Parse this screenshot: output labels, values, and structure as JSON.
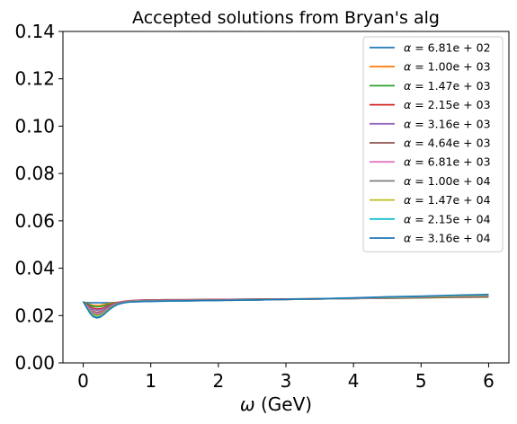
{
  "chart_data": {
    "type": "line",
    "title": "Accepted solutions from Bryan's alg",
    "xlabel_symbol": "ω",
    "xlabel_unit": "(GeV)",
    "ylabel": "",
    "xlim": [
      -0.3,
      6.3
    ],
    "ylim": [
      0,
      0.14
    ],
    "xticks": [
      "0",
      "1",
      "2",
      "3",
      "4",
      "5",
      "6"
    ],
    "yticks": [
      "0.00",
      "0.02",
      "0.04",
      "0.06",
      "0.08",
      "0.10",
      "0.12",
      "0.14"
    ],
    "grid": false,
    "legend_position": "top-right",
    "x": [
      0,
      0.05,
      0.1,
      0.15,
      0.2,
      0.25,
      0.3,
      0.35,
      0.4,
      0.45,
      0.5,
      0.6,
      0.7,
      0.8,
      0.9,
      1.0,
      1.25,
      1.5,
      2.0,
      2.5,
      3.0,
      3.5,
      4.0,
      4.5,
      5.0,
      5.5,
      6.0
    ],
    "series": [
      {
        "name": "α = 6.81e+02",
        "alpha_mantissa": "6.81",
        "alpha_exp": "02",
        "color": "#1f77b4",
        "values": [
          0.0255,
          0.0255,
          0.0254,
          0.0254,
          0.0254,
          0.0254,
          0.0254,
          0.0254,
          0.0254,
          0.0255,
          0.0255,
          0.0256,
          0.0257,
          0.0258,
          0.0259,
          0.026,
          0.0262,
          0.0263,
          0.0265,
          0.0266,
          0.0268,
          0.027,
          0.0272,
          0.0274,
          0.0276,
          0.0278,
          0.028
        ]
      },
      {
        "name": "α = 1.00e+03",
        "alpha_mantissa": "1.00",
        "alpha_exp": "03",
        "color": "#ff7f0e",
        "values": [
          0.0256,
          0.0252,
          0.0247,
          0.0243,
          0.0242,
          0.0243,
          0.0246,
          0.0249,
          0.0252,
          0.0254,
          0.0256,
          0.0259,
          0.0261,
          0.0262,
          0.0263,
          0.0264,
          0.0265,
          0.0266,
          0.0267,
          0.0268,
          0.0269,
          0.027,
          0.0272,
          0.0273,
          0.0275,
          0.0277,
          0.0278
        ]
      },
      {
        "name": "α = 1.47e+03",
        "alpha_mantissa": "1.47",
        "alpha_exp": "03",
        "color": "#2ca02c",
        "values": [
          0.0256,
          0.0251,
          0.0244,
          0.0239,
          0.0237,
          0.0238,
          0.0241,
          0.0245,
          0.0249,
          0.0252,
          0.0255,
          0.0259,
          0.0262,
          0.0264,
          0.0265,
          0.0266,
          0.0267,
          0.0267,
          0.0268,
          0.0269,
          0.027,
          0.0271,
          0.0272,
          0.0273,
          0.0275,
          0.0277,
          0.0278
        ]
      },
      {
        "name": "α = 2.15e+03",
        "alpha_mantissa": "2.15",
        "alpha_exp": "03",
        "color": "#d62728",
        "values": [
          0.0257,
          0.0248,
          0.0238,
          0.0231,
          0.0228,
          0.0229,
          0.0233,
          0.0239,
          0.0245,
          0.025,
          0.0254,
          0.026,
          0.0263,
          0.0265,
          0.0266,
          0.0266,
          0.0267,
          0.0267,
          0.0268,
          0.0269,
          0.027,
          0.0271,
          0.0272,
          0.0274,
          0.0276,
          0.0278,
          0.028
        ]
      },
      {
        "name": "α = 3.16e+03",
        "alpha_mantissa": "3.16",
        "alpha_exp": "03",
        "color": "#9467bd",
        "values": [
          0.0257,
          0.0246,
          0.0234,
          0.0226,
          0.0223,
          0.0224,
          0.0229,
          0.0235,
          0.0242,
          0.0248,
          0.0253,
          0.0259,
          0.0262,
          0.0264,
          0.0265,
          0.0265,
          0.0266,
          0.0266,
          0.0267,
          0.0268,
          0.0269,
          0.0271,
          0.0273,
          0.0275,
          0.0277,
          0.0279,
          0.0281
        ]
      },
      {
        "name": "α = 4.64e+03",
        "alpha_mantissa": "4.64",
        "alpha_exp": "03",
        "color": "#8c564b",
        "values": [
          0.0258,
          0.0243,
          0.0228,
          0.0218,
          0.0214,
          0.0216,
          0.0222,
          0.023,
          0.0238,
          0.0245,
          0.0251,
          0.0258,
          0.0261,
          0.0263,
          0.0263,
          0.0264,
          0.0264,
          0.0265,
          0.0266,
          0.0267,
          0.0268,
          0.027,
          0.0272,
          0.0274,
          0.0277,
          0.0279,
          0.0282
        ]
      },
      {
        "name": "α = 6.81e+03",
        "alpha_mantissa": "6.81",
        "alpha_exp": "03",
        "color": "#e377c2",
        "values": [
          0.0258,
          0.0242,
          0.0225,
          0.0214,
          0.0209,
          0.0211,
          0.0218,
          0.0227,
          0.0236,
          0.0244,
          0.025,
          0.0257,
          0.0261,
          0.0262,
          0.0262,
          0.0263,
          0.0263,
          0.0264,
          0.0265,
          0.0266,
          0.0268,
          0.027,
          0.0272,
          0.0275,
          0.0278,
          0.0281,
          0.0284
        ]
      },
      {
        "name": "α = 1.00e+04",
        "alpha_mantissa": "1.00",
        "alpha_exp": "04",
        "color": "#7f7f7f",
        "values": [
          0.0259,
          0.024,
          0.0221,
          0.0209,
          0.0204,
          0.0206,
          0.0214,
          0.0224,
          0.0234,
          0.0242,
          0.0249,
          0.0256,
          0.026,
          0.0261,
          0.0261,
          0.0262,
          0.0262,
          0.0263,
          0.0264,
          0.0266,
          0.0268,
          0.027,
          0.0273,
          0.0276,
          0.0279,
          0.0282,
          0.0285
        ]
      },
      {
        "name": "α = 1.47e+04",
        "alpha_mantissa": "1.47",
        "alpha_exp": "04",
        "color": "#bcbd22",
        "values": [
          0.0259,
          0.0238,
          0.0217,
          0.0203,
          0.0198,
          0.02,
          0.0209,
          0.022,
          0.0231,
          0.024,
          0.0247,
          0.0255,
          0.0259,
          0.026,
          0.026,
          0.0261,
          0.0261,
          0.0262,
          0.0264,
          0.0266,
          0.0268,
          0.0271,
          0.0274,
          0.0277,
          0.028,
          0.0283,
          0.0286
        ]
      },
      {
        "name": "α = 2.15e+04",
        "alpha_mantissa": "2.15",
        "alpha_exp": "04",
        "color": "#17becf",
        "values": [
          0.026,
          0.0236,
          0.0213,
          0.0198,
          0.0193,
          0.0195,
          0.0205,
          0.0217,
          0.0229,
          0.0238,
          0.0246,
          0.0254,
          0.0258,
          0.0259,
          0.026,
          0.026,
          0.0261,
          0.0262,
          0.0264,
          0.0266,
          0.0268,
          0.0271,
          0.0274,
          0.0278,
          0.0281,
          0.0285,
          0.0288
        ]
      },
      {
        "name": "α = 3.16e+04",
        "alpha_mantissa": "3.16",
        "alpha_exp": "04",
        "color": "#1f77b4",
        "values": [
          0.026,
          0.0234,
          0.021,
          0.0195,
          0.019,
          0.0193,
          0.0203,
          0.0216,
          0.0228,
          0.0238,
          0.0246,
          0.0254,
          0.0258,
          0.0259,
          0.026,
          0.026,
          0.0261,
          0.0262,
          0.0264,
          0.0266,
          0.0268,
          0.0271,
          0.0275,
          0.0279,
          0.0282,
          0.0286,
          0.0289
        ]
      }
    ]
  }
}
